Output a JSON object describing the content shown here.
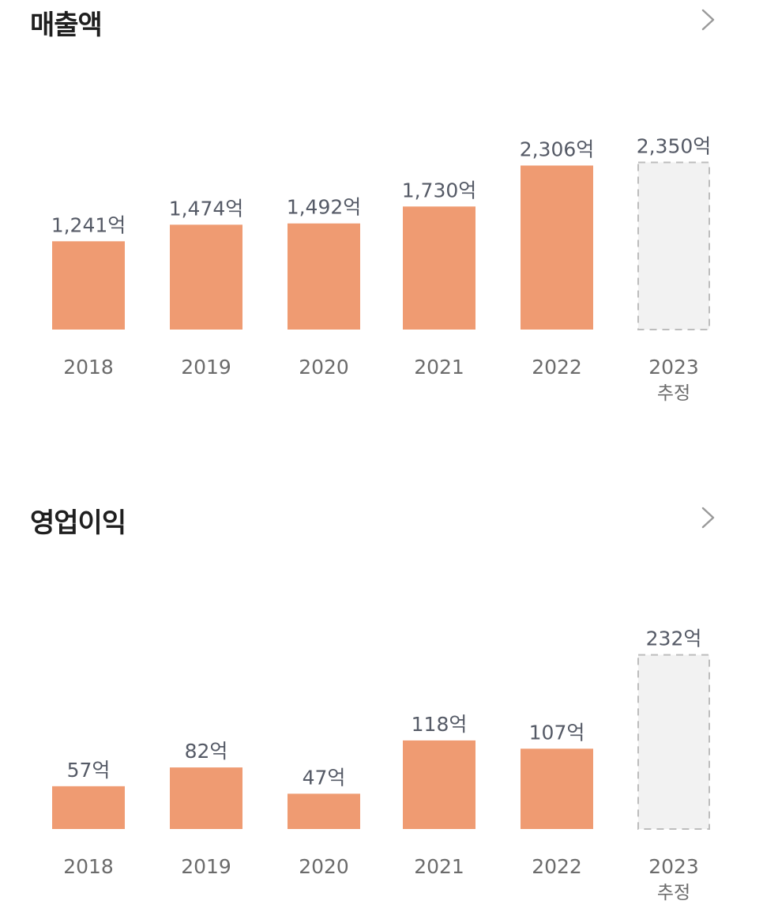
{
  "sections": [
    {
      "title": "매출액",
      "more_icon": "chevron-right-icon"
    },
    {
      "title": "영업이익",
      "more_icon": "chevron-right-icon"
    }
  ],
  "colors": {
    "bar": "#ef9b72",
    "estimate_fill": "#f2f2f2",
    "estimate_border": "#bdbdbd",
    "value_text": "#555a66",
    "tick_text": "#6b6b6b"
  },
  "chart_data": [
    {
      "type": "bar",
      "title": "매출액",
      "unit": "억",
      "categories": [
        {
          "label": "2018",
          "sub": ""
        },
        {
          "label": "2019",
          "sub": ""
        },
        {
          "label": "2020",
          "sub": ""
        },
        {
          "label": "2021",
          "sub": ""
        },
        {
          "label": "2022",
          "sub": ""
        },
        {
          "label": "2023",
          "sub": "추정"
        }
      ],
      "values": [
        1241,
        1474,
        1492,
        1730,
        2306,
        2350
      ],
      "value_labels": [
        "1,241억",
        "1,474억",
        "1,492억",
        "1,730억",
        "2,306억",
        "2,350억"
      ],
      "estimated": [
        false,
        false,
        false,
        false,
        false,
        true
      ]
    },
    {
      "type": "bar",
      "title": "영업이익",
      "unit": "억",
      "categories": [
        {
          "label": "2018",
          "sub": ""
        },
        {
          "label": "2019",
          "sub": ""
        },
        {
          "label": "2020",
          "sub": ""
        },
        {
          "label": "2021",
          "sub": ""
        },
        {
          "label": "2022",
          "sub": ""
        },
        {
          "label": "2023",
          "sub": "추정"
        }
      ],
      "values": [
        57,
        82,
        47,
        118,
        107,
        232
      ],
      "value_labels": [
        "57억",
        "82억",
        "47억",
        "118억",
        "107억",
        "232억"
      ],
      "estimated": [
        false,
        false,
        false,
        false,
        false,
        true
      ]
    }
  ]
}
